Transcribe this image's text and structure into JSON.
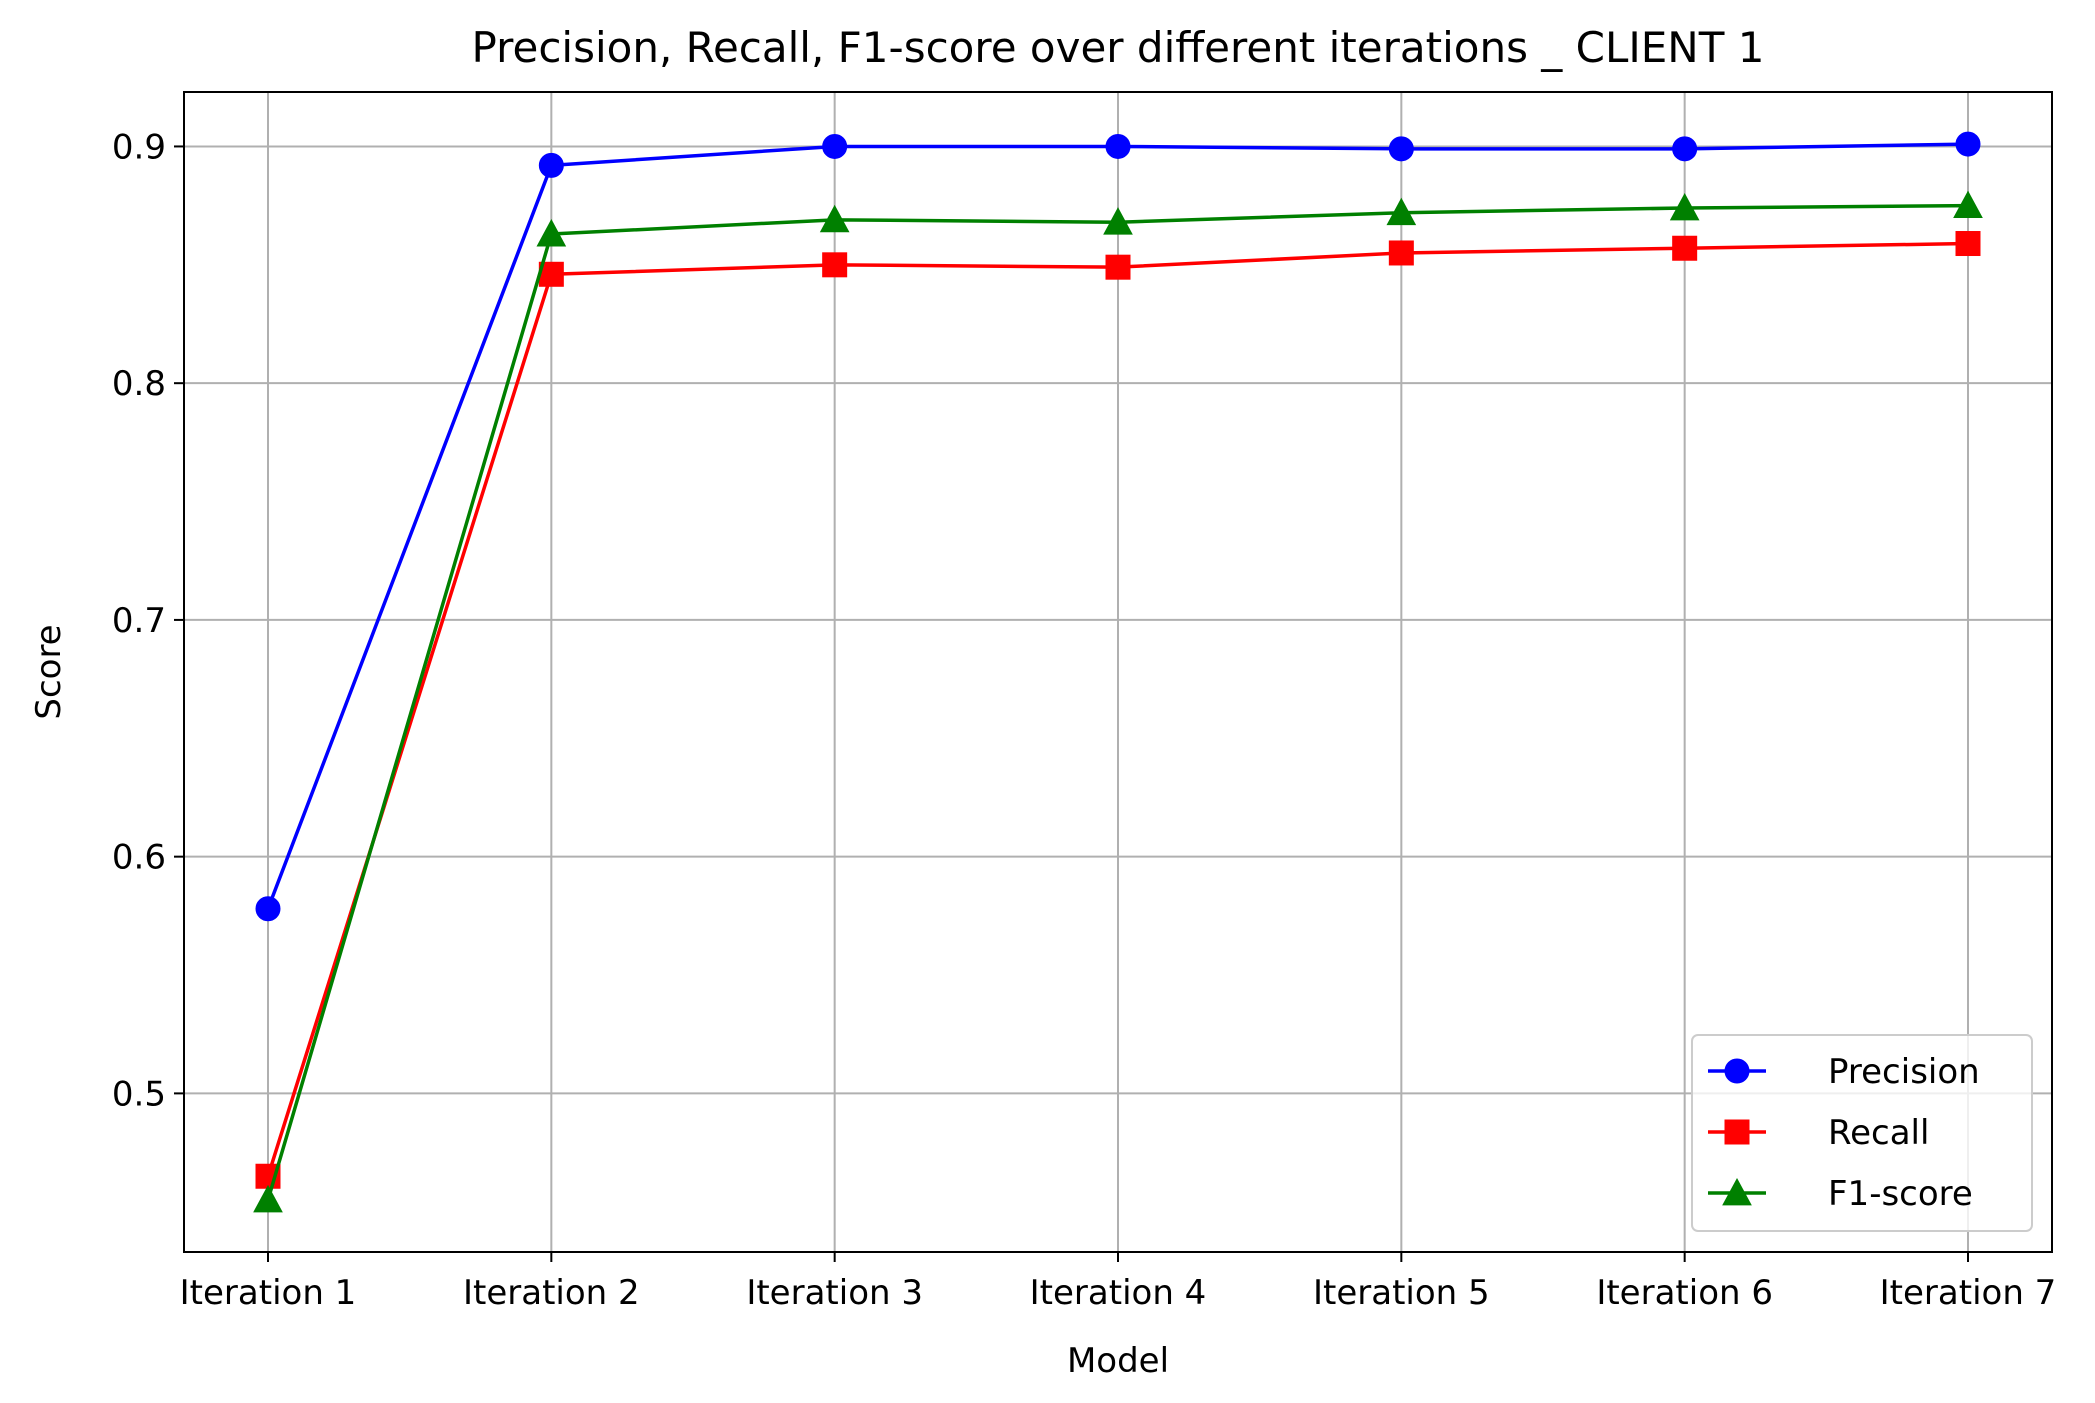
{
  "chart_data": {
    "type": "line",
    "title": "Precision, Recall, F1-score over different iterations _ CLIENT 1",
    "xlabel": "Model",
    "ylabel": "Score",
    "categories": [
      "Iteration 1",
      "Iteration 2",
      "Iteration 3",
      "Iteration 4",
      "Iteration 5",
      "Iteration 6",
      "Iteration 7"
    ],
    "ylim": [
      0.433,
      0.923
    ],
    "yticks": [
      0.5,
      0.6,
      0.7,
      0.8,
      0.9
    ],
    "ytick_labels": [
      "0.5",
      "0.6",
      "0.7",
      "0.8",
      "0.9"
    ],
    "grid": true,
    "legend_position": "bottom-right",
    "series": [
      {
        "name": "Precision",
        "color": "#0000ff",
        "marker": "circle",
        "values": [
          0.578,
          0.892,
          0.9,
          0.9,
          0.899,
          0.899,
          0.901
        ]
      },
      {
        "name": "Recall",
        "color": "#ff0000",
        "marker": "square",
        "values": [
          0.465,
          0.846,
          0.85,
          0.849,
          0.855,
          0.857,
          0.859
        ]
      },
      {
        "name": "F1-score",
        "color": "#008000",
        "marker": "triangle",
        "values": [
          0.455,
          0.863,
          0.869,
          0.868,
          0.872,
          0.874,
          0.875
        ]
      }
    ]
  }
}
